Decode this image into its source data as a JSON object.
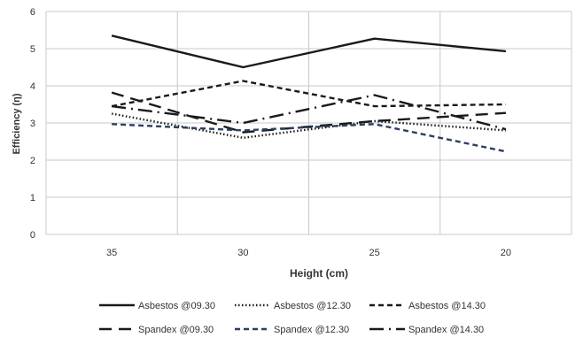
{
  "chart_data": {
    "type": "line",
    "title": "",
    "xlabel": "Height (cm)",
    "ylabel": "Efficiency (η)",
    "categories": [
      "35",
      "30",
      "25",
      "20"
    ],
    "ylim": [
      0,
      6
    ],
    "yticks": [
      "0",
      "1",
      "2",
      "3",
      "4",
      "5",
      "6"
    ],
    "grid": "both",
    "legend_position": "bottom",
    "series": [
      {
        "name": "Asbestos @09.30",
        "values": [
          5.35,
          4.5,
          5.27,
          4.93
        ],
        "color": "#1a1a1a",
        "style": "solid"
      },
      {
        "name": "Asbestos @12.30",
        "values": [
          3.25,
          2.6,
          3.05,
          2.8
        ],
        "color": "#1a1a1a",
        "style": "dotted"
      },
      {
        "name": "Asbestos @14.30",
        "values": [
          3.45,
          4.13,
          3.45,
          3.5
        ],
        "color": "#1a1a1a",
        "style": "dashed"
      },
      {
        "name": "Spandex @09.30",
        "values": [
          3.82,
          2.75,
          3.05,
          3.27
        ],
        "color": "#1a1a1a",
        "style": "longdash"
      },
      {
        "name": "Spandex @12.30",
        "values": [
          2.97,
          2.8,
          2.97,
          2.23
        ],
        "color": "#2e3e63",
        "style": "dashed"
      },
      {
        "name": "Spandex @14.30",
        "values": [
          3.45,
          3.0,
          3.75,
          2.83
        ],
        "color": "#1a1a1a",
        "style": "dashdot"
      }
    ]
  }
}
